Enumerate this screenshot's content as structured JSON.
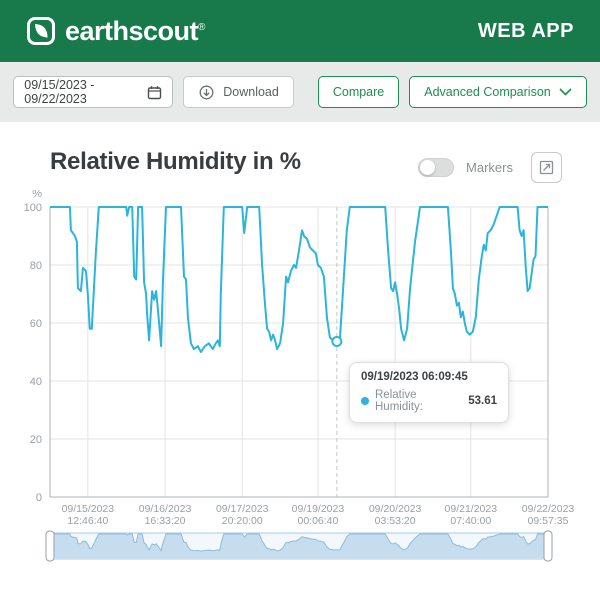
{
  "header": {
    "brand": "earthscout",
    "brand_mark": "®",
    "app_label": "WEB APP",
    "bg_color": "#187a4b"
  },
  "toolbar": {
    "date_range": "09/15/2023 - 09/22/2023",
    "download_label": "Download",
    "compare_label": "Compare",
    "advanced_label": "Advanced Comparison",
    "accent_color": "#1d8d52"
  },
  "chart_header": {
    "title": "Relative Humidity in %",
    "markers_label": "Markers"
  },
  "tooltip": {
    "datetime": "09/19/2023  06:09:45",
    "label": "Relative Humidity:",
    "value": "53.61"
  },
  "chart_data": {
    "type": "line",
    "title": "Relative Humidity in %",
    "ylabel": "%",
    "unit": "%",
    "series_name": "Relative Humidity",
    "line_color": "#2cb4da",
    "grid": true,
    "legend_position": "none",
    "ylim": [
      0,
      100
    ],
    "y_ticks": [
      0,
      20,
      40,
      60,
      80,
      100
    ],
    "x_ticks": [
      {
        "pos": 0.076,
        "date": "09/15/2023",
        "time": "12:46:40"
      },
      {
        "pos": 0.231,
        "date": "09/16/2023",
        "time": "16:33:20"
      },
      {
        "pos": 0.386,
        "date": "09/17/2023",
        "time": "20:20:00"
      },
      {
        "pos": 0.538,
        "date": "09/19/2023",
        "time": "00:06:40"
      },
      {
        "pos": 0.693,
        "date": "09/20/2023",
        "time": "03:53:20"
      },
      {
        "pos": 0.845,
        "date": "09/21/2023",
        "time": "07:40:00"
      },
      {
        "pos": 1.0,
        "date": "09/22/2023",
        "time": "09:57:35"
      }
    ],
    "hover": {
      "pos": 0.576,
      "value": 53.61,
      "date": "09/19/2023",
      "time": "06:09:45"
    },
    "points": [
      [
        0.0,
        100
      ],
      [
        0.04,
        100
      ],
      [
        0.042,
        92
      ],
      [
        0.05,
        90
      ],
      [
        0.054,
        88
      ],
      [
        0.056,
        72
      ],
      [
        0.062,
        71
      ],
      [
        0.066,
        79
      ],
      [
        0.072,
        78
      ],
      [
        0.076,
        70
      ],
      [
        0.08,
        58
      ],
      [
        0.084,
        58
      ],
      [
        0.092,
        84
      ],
      [
        0.098,
        100
      ],
      [
        0.153,
        100
      ],
      [
        0.155,
        97
      ],
      [
        0.159,
        100
      ],
      [
        0.165,
        100
      ],
      [
        0.169,
        76
      ],
      [
        0.173,
        75
      ],
      [
        0.177,
        100
      ],
      [
        0.185,
        100
      ],
      [
        0.189,
        74
      ],
      [
        0.193,
        70
      ],
      [
        0.195,
        63
      ],
      [
        0.199,
        54
      ],
      [
        0.205,
        71
      ],
      [
        0.209,
        68
      ],
      [
        0.213,
        71
      ],
      [
        0.217,
        64
      ],
      [
        0.223,
        52
      ],
      [
        0.227,
        75
      ],
      [
        0.233,
        100
      ],
      [
        0.263,
        100
      ],
      [
        0.269,
        76
      ],
      [
        0.273,
        75
      ],
      [
        0.277,
        62
      ],
      [
        0.283,
        53
      ],
      [
        0.289,
        51
      ],
      [
        0.297,
        52
      ],
      [
        0.303,
        50
      ],
      [
        0.311,
        52
      ],
      [
        0.319,
        53
      ],
      [
        0.327,
        51
      ],
      [
        0.333,
        53
      ],
      [
        0.337,
        54
      ],
      [
        0.341,
        52
      ],
      [
        0.343,
        70
      ],
      [
        0.349,
        100
      ],
      [
        0.386,
        100
      ],
      [
        0.39,
        91
      ],
      [
        0.396,
        100
      ],
      [
        0.42,
        100
      ],
      [
        0.426,
        80
      ],
      [
        0.432,
        66
      ],
      [
        0.436,
        58
      ],
      [
        0.44,
        57
      ],
      [
        0.444,
        54
      ],
      [
        0.448,
        56
      ],
      [
        0.452,
        54
      ],
      [
        0.456,
        51
      ],
      [
        0.462,
        53
      ],
      [
        0.468,
        60
      ],
      [
        0.474,
        76
      ],
      [
        0.478,
        74
      ],
      [
        0.484,
        78
      ],
      [
        0.49,
        80
      ],
      [
        0.494,
        79
      ],
      [
        0.5,
        85
      ],
      [
        0.506,
        92
      ],
      [
        0.51,
        90
      ],
      [
        0.516,
        89
      ],
      [
        0.522,
        86
      ],
      [
        0.528,
        85
      ],
      [
        0.534,
        84
      ],
      [
        0.538,
        80
      ],
      [
        0.544,
        79
      ],
      [
        0.55,
        76
      ],
      [
        0.556,
        62
      ],
      [
        0.562,
        55
      ],
      [
        0.568,
        54
      ],
      [
        0.576,
        53.61
      ],
      [
        0.582,
        54
      ],
      [
        0.588,
        70
      ],
      [
        0.596,
        92
      ],
      [
        0.602,
        100
      ],
      [
        0.673,
        100
      ],
      [
        0.679,
        85
      ],
      [
        0.685,
        72
      ],
      [
        0.689,
        71
      ],
      [
        0.693,
        74
      ],
      [
        0.697,
        70
      ],
      [
        0.701,
        65
      ],
      [
        0.705,
        58
      ],
      [
        0.711,
        54
      ],
      [
        0.717,
        58
      ],
      [
        0.723,
        72
      ],
      [
        0.733,
        88
      ],
      [
        0.743,
        100
      ],
      [
        0.799,
        100
      ],
      [
        0.805,
        85
      ],
      [
        0.809,
        72
      ],
      [
        0.813,
        70
      ],
      [
        0.817,
        66
      ],
      [
        0.821,
        67
      ],
      [
        0.825,
        62
      ],
      [
        0.829,
        64
      ],
      [
        0.833,
        60
      ],
      [
        0.837,
        57
      ],
      [
        0.843,
        56
      ],
      [
        0.849,
        57
      ],
      [
        0.855,
        62
      ],
      [
        0.861,
        75
      ],
      [
        0.867,
        83
      ],
      [
        0.871,
        87
      ],
      [
        0.875,
        85
      ],
      [
        0.879,
        91
      ],
      [
        0.885,
        92
      ],
      [
        0.891,
        94
      ],
      [
        0.897,
        97
      ],
      [
        0.903,
        100
      ],
      [
        0.939,
        100
      ],
      [
        0.943,
        92
      ],
      [
        0.947,
        90
      ],
      [
        0.951,
        92
      ],
      [
        0.955,
        80
      ],
      [
        0.959,
        71
      ],
      [
        0.963,
        72
      ],
      [
        0.971,
        82
      ],
      [
        0.975,
        83
      ],
      [
        0.979,
        100
      ],
      [
        1.0,
        100
      ]
    ],
    "navigator": {
      "frame_color": "#a9cbe6",
      "fill_color": "#c6ddef",
      "line_color": "#90bbd8",
      "bg_color": "#f3f8fc"
    },
    "colors": {
      "grid": "#e2e4e6",
      "axis": "#aeb4b8",
      "label": "#9aa0a5",
      "hover_line": "#c3c6c9"
    }
  }
}
